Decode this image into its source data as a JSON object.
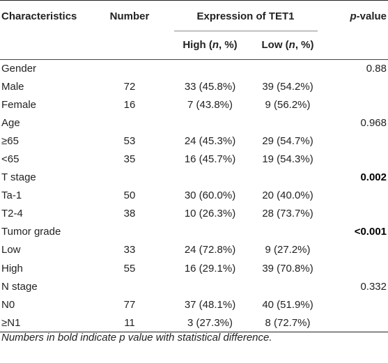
{
  "table": {
    "headers": {
      "characteristics": "Characteristics",
      "number": "Number",
      "expression": "Expression of TET1",
      "high_pre": "High (",
      "high_n": "n",
      "high_post": ", %)",
      "low_pre": "Low (",
      "low_n": "n",
      "low_post": ", %)",
      "pvalue_p": "p",
      "pvalue_rest": "-value"
    },
    "rows": [
      {
        "characteristic": "Gender",
        "number": "",
        "high": "",
        "low": "",
        "pvalue": "0.88"
      },
      {
        "characteristic": "Male",
        "number": "72",
        "high": "33 (45.8%)",
        "low": "39 (54.2%)",
        "pvalue": ""
      },
      {
        "characteristic": "Female",
        "number": "16",
        "high": "7 (43.8%)",
        "low": "9 (56.2%)",
        "pvalue": ""
      },
      {
        "characteristic": "Age",
        "number": "",
        "high": "",
        "low": "",
        "pvalue": "0.968"
      },
      {
        "characteristic": "≥65",
        "number": "53",
        "high": "24 (45.3%)",
        "low": "29 (54.7%)",
        "pvalue": ""
      },
      {
        "characteristic": "<65",
        "number": "35",
        "high": "16 (45.7%)",
        "low": "19 (54.3%)",
        "pvalue": ""
      },
      {
        "characteristic": "T stage",
        "number": "",
        "high": "",
        "low": "",
        "pvalue": "0.002"
      },
      {
        "characteristic": "Ta-1",
        "number": "50",
        "high": "30 (60.0%)",
        "low": "20 (40.0%)",
        "pvalue": ""
      },
      {
        "characteristic": "T2-4",
        "number": "38",
        "high": "10 (26.3%)",
        "low": "28 (73.7%)",
        "pvalue": ""
      },
      {
        "characteristic": "Tumor grade",
        "number": "",
        "high": "",
        "low": "",
        "pvalue": "<0.001"
      },
      {
        "characteristic": "Low",
        "number": "33",
        "high": "24 (72.8%)",
        "low": "9 (27.2%)",
        "pvalue": ""
      },
      {
        "characteristic": "High",
        "number": "55",
        "high": "16 (29.1%)",
        "low": "39 (70.8%)",
        "pvalue": ""
      },
      {
        "characteristic": "N stage",
        "number": "",
        "high": "",
        "low": "",
        "pvalue": "0.332"
      },
      {
        "characteristic": "N0",
        "number": "77",
        "high": "37 (48.1%)",
        "low": "40 (51.9%)",
        "pvalue": ""
      },
      {
        "characteristic": "≥N1",
        "number": "11",
        "high": "3 (27.3%)",
        "low": "8 (72.7%)",
        "pvalue": ""
      }
    ],
    "bold_pvalue_rows": [
      6,
      9
    ]
  },
  "footnote": "Numbers in bold indicate p value with statistical difference."
}
